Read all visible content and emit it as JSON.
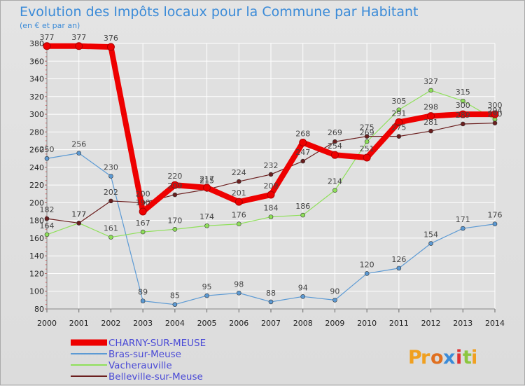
{
  "chart_data": {
    "type": "line",
    "title": "Evolution des Impôts locaux pour la Commune par Habitant",
    "subtitle": "(en € et par an)",
    "x": [
      "2000",
      "2001",
      "2002",
      "2003",
      "2004",
      "2005",
      "2006",
      "2007",
      "2008",
      "2009",
      "2010",
      "2011",
      "2012",
      "2013",
      "2014"
    ],
    "ylim": [
      80,
      380
    ],
    "yticks": [
      80,
      100,
      120,
      140,
      160,
      180,
      200,
      220,
      240,
      260,
      280,
      300,
      320,
      340,
      360,
      380
    ],
    "grid": true,
    "legend_position": "bottom-left",
    "series": [
      {
        "name": "CHARNY-SUR-MEUSE",
        "color": "#ee0000",
        "values": [
          377,
          377,
          376,
          190,
          220,
          217,
          201,
          209,
          268,
          254,
          251,
          291,
          298,
          300,
          300
        ],
        "labels": [
          "377",
          "377",
          "376",
          "190",
          "220",
          "217",
          "201",
          "209",
          "268",
          "254",
          "251",
          "291",
          "298",
          "300",
          "300"
        ]
      },
      {
        "name": "Bras-sur-Meuse",
        "color": "#5c9ad4",
        "values": [
          250,
          256,
          230,
          89,
          85,
          95,
          98,
          88,
          94,
          90,
          120,
          126,
          154,
          171,
          176
        ],
        "labels": [
          "250",
          "256",
          "230",
          "89",
          "85",
          "95",
          "98",
          "88",
          "94",
          "90",
          "120",
          "126",
          "154",
          "171",
          "176"
        ]
      },
      {
        "name": "Vacherauville",
        "color": "#8fe05a",
        "values": [
          164,
          177,
          161,
          167,
          170,
          174,
          176,
          184,
          186,
          214,
          269,
          305,
          327,
          315,
          294
        ],
        "labels": [
          "164",
          "177",
          "161",
          "167",
          "170",
          "174",
          "176",
          "184",
          "186",
          "214",
          "269",
          "305",
          "327",
          "315",
          "294"
        ]
      },
      {
        "name": "Belleville-sur-Meuse",
        "color": "#6b1f1f",
        "values": [
          182,
          177,
          202,
          200,
          209,
          215,
          224,
          232,
          247,
          269,
          275,
          275,
          281,
          289,
          290
        ],
        "labels": [
          "182",
          "177",
          "202",
          "200",
          "209",
          "215",
          "224",
          "232",
          "247",
          "269",
          "275",
          "275",
          "281",
          "289",
          "290"
        ]
      }
    ]
  },
  "logo": {
    "text": "Proxiti",
    "colors": [
      "#f0a020",
      "#f0a020",
      "#e07020",
      "#3b8bd8",
      "#e03030",
      "#8cc63f",
      "#f0a020"
    ]
  }
}
